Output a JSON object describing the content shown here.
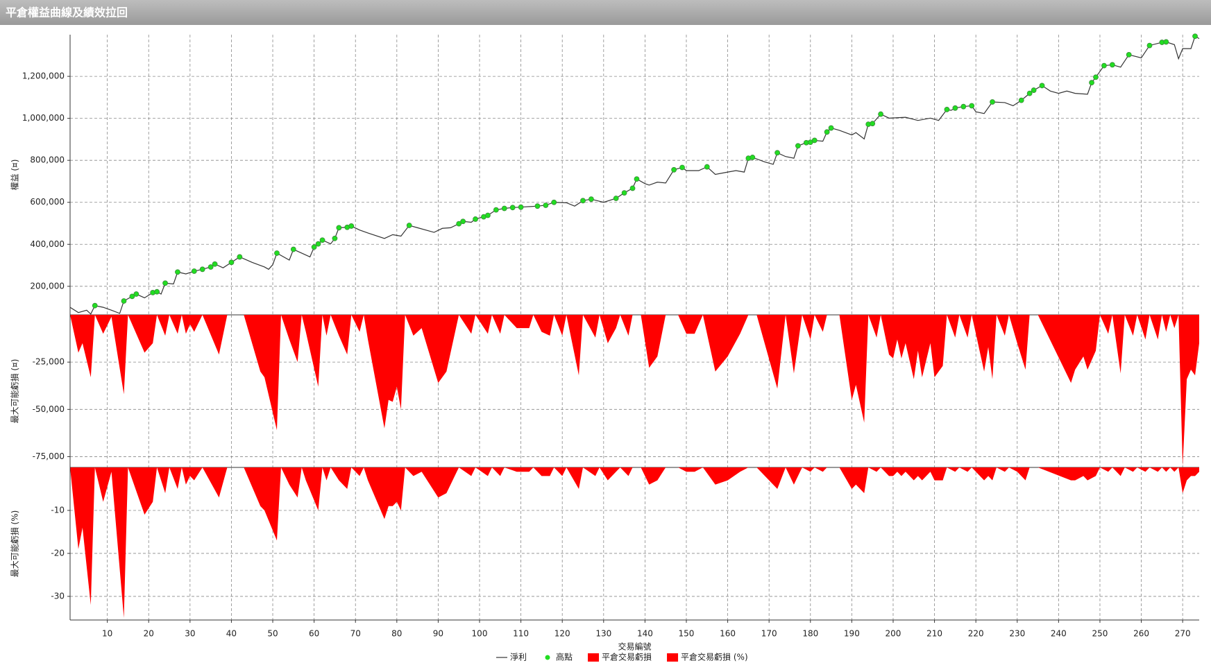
{
  "chart_data": [
    {
      "type": "line",
      "title": "平倉權益曲線及績效拉回",
      "ylabel": "權益 (¤)",
      "x": [
        1,
        3,
        5,
        6,
        7,
        9,
        11,
        13,
        14,
        16,
        17,
        19,
        21,
        22,
        23,
        24,
        26,
        27,
        29,
        31,
        33,
        35,
        36,
        38,
        40,
        42,
        45,
        48,
        49,
        50,
        51,
        54,
        55,
        59,
        60,
        61,
        62,
        64,
        65,
        66,
        68,
        69,
        71,
        73,
        77,
        79,
        81,
        83,
        85,
        89,
        91,
        93,
        95,
        96,
        98,
        99,
        101,
        102,
        104,
        106,
        108,
        110,
        114,
        116,
        118,
        121,
        123,
        125,
        127,
        130,
        133,
        135,
        137,
        138,
        140,
        141,
        143,
        145,
        147,
        149,
        150,
        153,
        155,
        157,
        160,
        162,
        164,
        165,
        166,
        169,
        171,
        172,
        174,
        176,
        177,
        179,
        180,
        181,
        183,
        184,
        185,
        187,
        190,
        191,
        193,
        194,
        195,
        197,
        199,
        203,
        206,
        209,
        211,
        213,
        214,
        215,
        217,
        219,
        220,
        222,
        224,
        227,
        229,
        231,
        233,
        234,
        236,
        238,
        240,
        242,
        244,
        247,
        248,
        249,
        251,
        253,
        255,
        257,
        260,
        262,
        265,
        266,
        268,
        269,
        270,
        272,
        273,
        274
      ],
      "series": [
        {
          "name": "淨利",
          "color": "#333333",
          "values": [
            100000,
            75000,
            86000,
            68000,
            108000,
            100000,
            86000,
            71000,
            130000,
            152000,
            163000,
            145000,
            170000,
            174000,
            163000,
            215000,
            211000,
            268000,
            259000,
            272000,
            281000,
            292000,
            306000,
            288000,
            314000,
            340000,
            314000,
            292000,
            281000,
            303000,
            358000,
            325000,
            376000,
            340000,
            387000,
            402000,
            420000,
            402000,
            428000,
            479000,
            481000,
            487000,
            468000,
            454000,
            428000,
            446000,
            439000,
            490000,
            479000,
            457000,
            476000,
            479000,
            498000,
            509000,
            505000,
            520000,
            531000,
            538000,
            564000,
            571000,
            575000,
            577000,
            582000,
            586000,
            600000,
            598000,
            582000,
            608000,
            615000,
            600000,
            619000,
            645000,
            667000,
            711000,
            689000,
            682000,
            696000,
            692000,
            755000,
            766000,
            751000,
            751000,
            769000,
            733000,
            744000,
            751000,
            744000,
            810000,
            814000,
            792000,
            781000,
            836000,
            818000,
            810000,
            869000,
            884000,
            886000,
            895000,
            891000,
            935000,
            954000,
            943000,
            921000,
            932000,
            902000,
            972000,
            975000,
            1020000,
            1001000,
            1005000,
            990000,
            1001000,
            990000,
            1042000,
            1038000,
            1049000,
            1056000,
            1060000,
            1031000,
            1023000,
            1078000,
            1075000,
            1060000,
            1086000,
            1119000,
            1134000,
            1156000,
            1130000,
            1119000,
            1130000,
            1119000,
            1115000,
            1170000,
            1196000,
            1251000,
            1255000,
            1244000,
            1303000,
            1288000,
            1347000,
            1362000,
            1364000,
            1351000,
            1284000,
            1332000,
            1332000,
            1391000,
            1380000
          ]
        },
        {
          "name": "高點",
          "color": "#22dd22",
          "mode": "markers",
          "values": [
            null,
            null,
            null,
            null,
            108000,
            null,
            null,
            null,
            130000,
            152000,
            163000,
            null,
            170000,
            174000,
            null,
            215000,
            null,
            268000,
            null,
            272000,
            281000,
            292000,
            306000,
            null,
            314000,
            340000,
            null,
            null,
            null,
            null,
            358000,
            null,
            376000,
            null,
            387000,
            402000,
            420000,
            null,
            428000,
            479000,
            481000,
            487000,
            null,
            null,
            null,
            null,
            null,
            490000,
            null,
            null,
            null,
            null,
            498000,
            509000,
            null,
            520000,
            531000,
            538000,
            564000,
            571000,
            575000,
            577000,
            582000,
            586000,
            600000,
            null,
            null,
            608000,
            615000,
            null,
            619000,
            645000,
            667000,
            711000,
            null,
            null,
            null,
            null,
            755000,
            766000,
            null,
            null,
            769000,
            null,
            null,
            null,
            null,
            810000,
            814000,
            null,
            null,
            836000,
            null,
            null,
            869000,
            884000,
            886000,
            895000,
            null,
            935000,
            954000,
            null,
            null,
            null,
            null,
            972000,
            975000,
            1020000,
            null,
            null,
            null,
            null,
            null,
            1042000,
            null,
            1049000,
            1056000,
            1060000,
            null,
            null,
            1078000,
            null,
            null,
            1086000,
            1119000,
            1134000,
            1156000,
            null,
            null,
            null,
            null,
            null,
            1170000,
            1196000,
            1251000,
            1255000,
            null,
            1303000,
            null,
            1347000,
            1362000,
            1364000,
            null,
            null,
            null,
            null,
            1391000,
            null
          ]
        }
      ],
      "xlim": [
        1,
        274
      ],
      "ylim": [
        64000,
        1398500
      ],
      "yticks": [
        {
          "value": 200000,
          "label": "200,000"
        },
        {
          "value": 400000,
          "label": "400,000"
        },
        {
          "value": 600000,
          "label": "600,000"
        },
        {
          "value": 800000,
          "label": "800,000"
        },
        {
          "value": 1000000,
          "label": "1,000,000"
        },
        {
          "value": 1200000,
          "label": "1,200,000"
        }
      ],
      "grid": true
    },
    {
      "type": "area",
      "ylabel": "最大可能虧損 (¤)",
      "x": [
        1,
        3,
        4,
        6,
        7,
        9,
        11,
        14,
        15,
        19,
        21,
        22,
        24,
        25,
        27,
        28,
        29,
        30,
        31,
        33,
        37,
        39,
        43,
        47,
        48,
        51,
        52,
        54,
        56,
        57,
        58,
        61,
        62,
        63,
        64,
        66,
        68,
        69,
        71,
        72,
        73,
        77,
        78,
        79,
        80,
        81,
        82,
        84,
        86,
        90,
        92,
        95,
        98,
        99,
        102,
        103,
        105,
        106,
        109,
        112,
        113,
        115,
        117,
        118,
        120,
        121,
        124,
        125,
        128,
        129,
        131,
        133,
        134,
        136,
        137,
        139,
        141,
        143,
        145,
        148,
        150,
        152,
        154,
        157,
        160,
        163,
        165,
        167,
        172,
        174,
        176,
        178,
        180,
        181,
        183,
        184,
        187,
        190,
        191,
        193,
        194,
        196,
        197,
        199,
        200,
        201,
        202,
        203,
        205,
        206,
        207,
        209,
        210,
        212,
        213,
        215,
        216,
        218,
        219,
        222,
        223,
        224,
        225,
        227,
        228,
        230,
        232,
        233,
        235,
        243,
        244,
        246,
        247,
        249,
        250,
        252,
        253,
        255,
        256,
        258,
        259,
        261,
        262,
        264,
        265,
        266,
        267,
        268,
        269,
        270,
        271,
        272,
        273,
        274
      ],
      "series": [
        {
          "name": "平倉交易虧損",
          "color": "#ff0000",
          "values": [
            0,
            -20000,
            -15000,
            -33000,
            0,
            -10000,
            -1000,
            -42000,
            0,
            -20000,
            -15000,
            0,
            -11000,
            0,
            -10000,
            0,
            -10000,
            -5000,
            -9000,
            0,
            -21000,
            0,
            0,
            -30000,
            -33000,
            -61000,
            0,
            -13000,
            -25000,
            0,
            -9000,
            -38000,
            0,
            -11000,
            0,
            -11000,
            -21000,
            0,
            -9000,
            0,
            -13000,
            -60000,
            -45000,
            -46000,
            -38000,
            -50000,
            0,
            -11000,
            -7000,
            -36000,
            -30000,
            0,
            -10000,
            0,
            -10000,
            0,
            -10000,
            0,
            -7000,
            -7000,
            0,
            -9000,
            -11000,
            0,
            -11000,
            0,
            -32000,
            0,
            -12000,
            0,
            -15000,
            -7000,
            0,
            -11000,
            0,
            0,
            -28000,
            -22000,
            0,
            0,
            -10000,
            -10000,
            0,
            -30000,
            -22000,
            -10000,
            0,
            0,
            -39000,
            0,
            -31000,
            0,
            -13000,
            0,
            -9000,
            0,
            0,
            -45000,
            -37000,
            -57000,
            0,
            -12000,
            0,
            -21000,
            -23000,
            -13000,
            -23000,
            -15000,
            -34000,
            -19000,
            -33000,
            -15000,
            -33000,
            -27000,
            0,
            -12000,
            0,
            -12000,
            0,
            -30000,
            -17000,
            -34000,
            0,
            -11000,
            0,
            -15000,
            -29000,
            0,
            0,
            -36000,
            -29000,
            -22000,
            -29000,
            -19000,
            0,
            -10000,
            0,
            -31000,
            0,
            -11000,
            0,
            -13000,
            0,
            -13000,
            0,
            -9000,
            0,
            -7000,
            0,
            -80000,
            -34000,
            -29000,
            -32000,
            -15000
          ]
        }
      ],
      "xlim": [
        1,
        274
      ],
      "ylim": [
        -80700,
        0
      ],
      "yticks": [
        {
          "value": -25000,
          "label": "-25,000"
        },
        {
          "value": -50000,
          "label": "-50,000"
        },
        {
          "value": -75000,
          "label": "-75,000"
        }
      ],
      "grid": true
    },
    {
      "type": "area",
      "ylabel": "最大可能虧損 (%)",
      "xlabel": "交易編號",
      "x": [
        1,
        3,
        4,
        6,
        7,
        9,
        11,
        14,
        15,
        19,
        21,
        22,
        24,
        25,
        27,
        28,
        29,
        30,
        31,
        33,
        37,
        39,
        43,
        47,
        48,
        51,
        52,
        54,
        56,
        57,
        58,
        61,
        62,
        63,
        64,
        66,
        68,
        69,
        71,
        72,
        73,
        77,
        78,
        79,
        80,
        81,
        82,
        84,
        86,
        90,
        92,
        95,
        98,
        99,
        102,
        103,
        105,
        106,
        109,
        112,
        113,
        115,
        117,
        118,
        120,
        121,
        124,
        125,
        128,
        129,
        131,
        133,
        134,
        136,
        137,
        139,
        141,
        143,
        145,
        148,
        150,
        152,
        154,
        157,
        160,
        163,
        165,
        167,
        172,
        174,
        176,
        178,
        180,
        181,
        183,
        184,
        187,
        190,
        191,
        193,
        194,
        196,
        197,
        199,
        200,
        201,
        202,
        203,
        205,
        206,
        207,
        209,
        210,
        212,
        213,
        215,
        216,
        218,
        219,
        222,
        223,
        224,
        225,
        227,
        228,
        230,
        232,
        233,
        235,
        243,
        244,
        246,
        247,
        249,
        250,
        252,
        253,
        255,
        256,
        258,
        259,
        261,
        262,
        264,
        265,
        266,
        267,
        268,
        269,
        270,
        271,
        272,
        273,
        274
      ],
      "series": [
        {
          "name": "平倉交易虧損 (%)",
          "color": "#ff0000",
          "values": [
            0,
            -19,
            -14,
            -32,
            0,
            -8,
            -1,
            -35,
            0,
            -11,
            -8,
            0,
            -6,
            0,
            -5,
            0,
            -4,
            -2,
            -3,
            0,
            -7,
            0,
            0,
            -9,
            -10,
            -17,
            0,
            -4,
            -7,
            0,
            -3,
            -10,
            0,
            -3,
            0,
            -3,
            -5,
            0,
            -2,
            0,
            -3,
            -12,
            -9,
            -9,
            -8,
            -10,
            0,
            -2,
            -1,
            -7,
            -6,
            0,
            -2,
            0,
            -2,
            0,
            -2,
            0,
            -1,
            -1,
            0,
            -2,
            -2,
            0,
            -2,
            0,
            -5,
            0,
            -2,
            0,
            -3,
            -1,
            0,
            -2,
            0,
            0,
            -4,
            -3,
            0,
            0,
            -1,
            -1,
            0,
            -4,
            -3,
            -1,
            0,
            0,
            -5,
            0,
            -4,
            0,
            -1,
            0,
            -1,
            0,
            0,
            -5,
            -4,
            -6,
            0,
            -1,
            0,
            -2,
            -2,
            -1,
            -2,
            -1,
            -3,
            -2,
            -3,
            -1,
            -3,
            -3,
            0,
            -1,
            0,
            -1,
            0,
            -3,
            -2,
            -3,
            0,
            -1,
            0,
            -1,
            -3,
            0,
            0,
            -3,
            -3,
            -2,
            -3,
            -2,
            0,
            -1,
            0,
            -2,
            0,
            -1,
            0,
            -1,
            0,
            -1,
            0,
            -1,
            0,
            -1,
            0,
            -6,
            -3,
            -2,
            -2,
            -1
          ]
        }
      ],
      "xlim": [
        1,
        274
      ],
      "ylim": [
        -35.5,
        0
      ],
      "yticks": [
        -10,
        -20,
        -30
      ],
      "xticks": [
        10,
        20,
        30,
        40,
        50,
        60,
        70,
        80,
        90,
        100,
        110,
        120,
        130,
        140,
        150,
        160,
        170,
        180,
        190,
        200,
        210,
        220,
        230,
        240,
        250,
        260,
        270
      ],
      "grid": true
    }
  ]
}
